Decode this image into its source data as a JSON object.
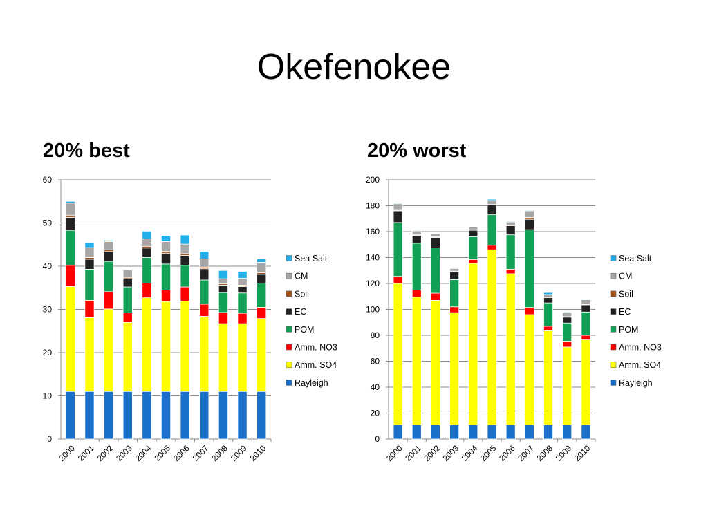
{
  "slide": {
    "title": "Okefenokee"
  },
  "colors": {
    "Rayleigh": "#1a70c8",
    "Amm. SO4": "#ffff00",
    "Amm. NO3": "#ff0000",
    "POM": "#11a055",
    "EC": "#222222",
    "Soil": "#a0521a",
    "CM": "#a6a6a6",
    "Sea Salt": "#22aee8"
  },
  "chart_data": [
    {
      "id": "best",
      "type": "bar",
      "stacked": true,
      "title": "20% best",
      "xlabel": "",
      "ylabel": "",
      "ylim": [
        0,
        60
      ],
      "yticks": [
        "0",
        "10",
        "20",
        "30",
        "40",
        "50",
        "60"
      ],
      "grid": true,
      "legend_position": "right",
      "categories": [
        "2000",
        "2001",
        "2002",
        "2003",
        "2004",
        "2005",
        "2006",
        "2007",
        "2008",
        "2009",
        "2010"
      ],
      "series": [
        {
          "name": "Rayleigh",
          "values": [
            11,
            11,
            11,
            11,
            11,
            11,
            11,
            11,
            11,
            11,
            11
          ]
        },
        {
          "name": "Amm. SO4",
          "values": [
            24.3,
            17.1,
            19.1,
            16,
            21.7,
            20.8,
            20.9,
            17.4,
            15.7,
            15.7,
            16.9
          ]
        },
        {
          "name": "Amm. NO3",
          "values": [
            4.9,
            4.0,
            4.0,
            2.2,
            3.4,
            2.7,
            3.3,
            2.8,
            2.6,
            2.4,
            2.6
          ]
        },
        {
          "name": "POM",
          "values": [
            8.1,
            7.2,
            7.0,
            6.0,
            5.9,
            6.0,
            5.0,
            5.6,
            4.6,
            4.7,
            5.6
          ]
        },
        {
          "name": "EC",
          "values": [
            3.0,
            2.3,
            2.3,
            1.9,
            2.2,
            2.5,
            2.3,
            2.6,
            1.7,
            1.5,
            2.0
          ]
        },
        {
          "name": "Soil",
          "values": [
            0.5,
            0.4,
            0.4,
            0.3,
            0.4,
            0.4,
            0.4,
            0.4,
            0.3,
            0.3,
            0.4
          ]
        },
        {
          "name": "CM",
          "values": [
            2.8,
            2.3,
            1.9,
            1.7,
            1.7,
            2.3,
            2.2,
            1.9,
            1.2,
            1.6,
            2.4
          ]
        },
        {
          "name": "Sea Salt",
          "values": [
            0.4,
            1.1,
            0.3,
            0.1,
            1.8,
            1.4,
            2.1,
            1.7,
            1.9,
            1.6,
            0.8
          ]
        }
      ],
      "legend_order": [
        "Sea Salt",
        "CM",
        "Soil",
        "EC",
        "POM",
        "Amm. NO3",
        "Amm. SO4",
        "Rayleigh"
      ]
    },
    {
      "id": "worst",
      "type": "bar",
      "stacked": true,
      "title": "20% worst",
      "xlabel": "",
      "ylabel": "",
      "ylim": [
        0,
        200
      ],
      "yticks": [
        "0",
        "20",
        "40",
        "60",
        "80",
        "100",
        "120",
        "140",
        "160",
        "180",
        "200"
      ],
      "grid": true,
      "legend_position": "right",
      "categories": [
        "2000",
        "2001",
        "2002",
        "2003",
        "2004",
        "2005",
        "2006",
        "2007",
        "2008",
        "2009",
        "2010"
      ],
      "series": [
        {
          "name": "Rayleigh",
          "values": [
            11,
            11,
            11,
            11,
            11,
            11,
            11,
            11,
            11,
            11,
            11
          ]
        },
        {
          "name": "Amm. SO4",
          "values": [
            109,
            98.5,
            96,
            86.5,
            124.5,
            135,
            116.5,
            85,
            72.5,
            60,
            65.5
          ]
        },
        {
          "name": "Amm. NO3",
          "values": [
            5.5,
            5.5,
            5.5,
            4.5,
            3,
            3.5,
            3.5,
            5.5,
            3.5,
            4.5,
            3.5
          ]
        },
        {
          "name": "POM",
          "values": [
            41.5,
            36,
            35,
            21,
            17.5,
            23.5,
            26.5,
            60,
            18,
            14,
            18
          ]
        },
        {
          "name": "EC",
          "values": [
            9,
            6,
            8,
            6,
            5,
            7.5,
            7,
            8,
            4,
            4.5,
            5.5
          ]
        },
        {
          "name": "Soil",
          "values": [
            0.5,
            0.5,
            0.5,
            0.5,
            0.5,
            0.5,
            0.5,
            1.5,
            0.5,
            0.5,
            0.5
          ]
        },
        {
          "name": "CM",
          "values": [
            5,
            3,
            2.5,
            2,
            2,
            3,
            2.5,
            5,
            2,
            3,
            3.5
          ]
        },
        {
          "name": "Sea Salt",
          "values": [
            0.5,
            0.5,
            0,
            0,
            0,
            1,
            0.5,
            0.5,
            1.5,
            0.5,
            0.5
          ]
        }
      ],
      "legend_order": [
        "Sea Salt",
        "CM",
        "Soil",
        "EC",
        "POM",
        "Amm. NO3",
        "Amm. SO4",
        "Rayleigh"
      ]
    }
  ]
}
